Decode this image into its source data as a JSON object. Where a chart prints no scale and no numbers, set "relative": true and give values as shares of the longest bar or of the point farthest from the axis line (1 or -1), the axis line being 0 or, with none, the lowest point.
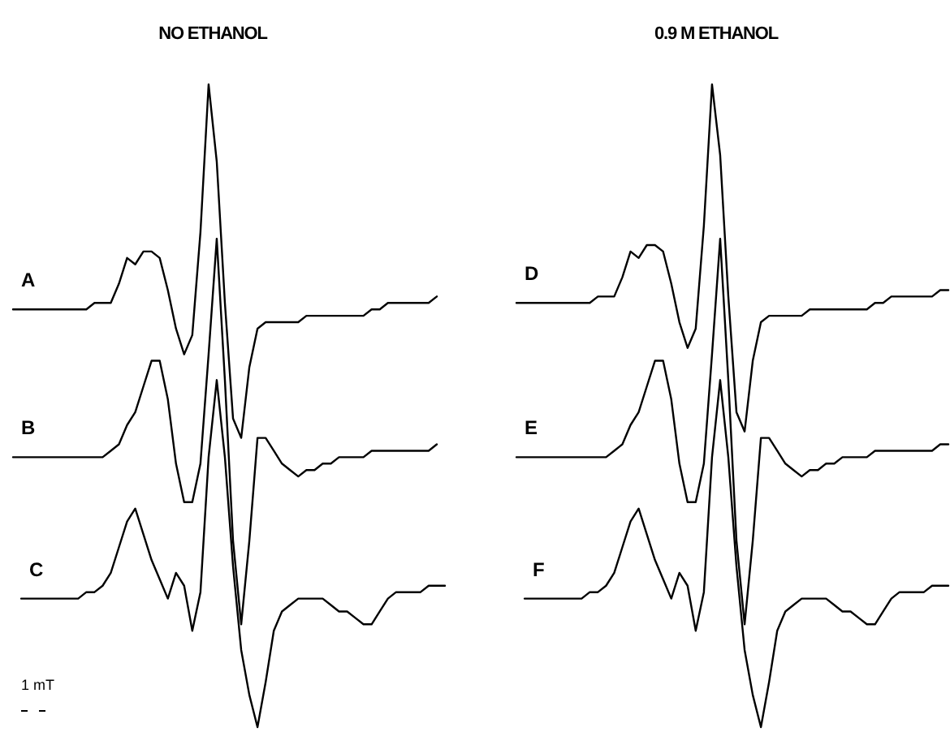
{
  "chart_data": [
    {
      "type": "line",
      "title": "NO ETHANOL",
      "relative": true,
      "categories": [
        null,
        null,
        null,
        null,
        null,
        null,
        null,
        null,
        null,
        null,
        null,
        null,
        null,
        null,
        null,
        null,
        null,
        null,
        null,
        null,
        null,
        null,
        null,
        null,
        null,
        null,
        null,
        null,
        null,
        null,
        null,
        null,
        null,
        null,
        null,
        null,
        null,
        null,
        null,
        null,
        null,
        null,
        null,
        null,
        null,
        null,
        null,
        null,
        null,
        null,
        null,
        null,
        null,
        null
      ],
      "annotations": [
        "1 mT"
      ],
      "series": [
        {
          "name": "A",
          "color": "#000000",
          "values": [
            0.65,
            0.65,
            0.65,
            0.65,
            0.65,
            0.65,
            0.65,
            0.65,
            0.65,
            0.65,
            0.66,
            0.66,
            0.66,
            0.69,
            0.73,
            0.72,
            0.74,
            0.74,
            0.73,
            0.68,
            0.62,
            0.58,
            0.61,
            0.77,
            1,
            0.88,
            0.66,
            0.48,
            0.45,
            0.56,
            0.62,
            0.63,
            0.63,
            0.63,
            0.63,
            0.63,
            0.64,
            0.64,
            0.64,
            0.64,
            0.64,
            0.64,
            0.64,
            0.64,
            0.65,
            0.65,
            0.66,
            0.66,
            0.66,
            0.66,
            0.66,
            0.66,
            0.67,
            null
          ]
        },
        {
          "name": "B",
          "color": "#000000",
          "values": [
            0.42,
            0.42,
            0.42,
            0.42,
            0.42,
            0.42,
            0.42,
            0.42,
            0.42,
            0.42,
            0.42,
            0.42,
            0.43,
            0.44,
            0.47,
            0.49,
            0.53,
            0.57,
            0.57,
            0.51,
            0.41,
            0.35,
            0.35,
            0.41,
            0.58,
            0.76,
            0.54,
            0.29,
            0.16,
            0.29,
            0.45,
            0.45,
            0.43,
            0.41,
            0.4,
            0.39,
            0.4,
            0.4,
            0.41,
            0.41,
            0.42,
            0.42,
            0.42,
            0.42,
            0.43,
            0.43,
            0.43,
            0.43,
            0.43,
            0.43,
            0.43,
            0.43,
            0.44,
            null
          ]
        },
        {
          "name": "C",
          "color": "#000000",
          "values": [
            null,
            0.2,
            0.2,
            0.2,
            0.2,
            0.2,
            0.2,
            0.2,
            0.2,
            0.21,
            0.21,
            0.22,
            0.24,
            0.28,
            0.32,
            0.34,
            0.3,
            0.26,
            0.23,
            0.2,
            0.24,
            0.22,
            0.15,
            0.21,
            0.42,
            0.54,
            0.42,
            0.25,
            0.12,
            0.05,
            0,
            0.07,
            0.15,
            0.18,
            0.19,
            0.2,
            0.2,
            0.2,
            0.2,
            0.19,
            0.18,
            0.18,
            0.17,
            0.16,
            0.16,
            0.18,
            0.2,
            0.21,
            0.21,
            0.21,
            0.21,
            0.22,
            0.22,
            0.22
          ]
        }
      ]
    },
    {
      "type": "line",
      "title": "0.9 M ETHANOL",
      "relative": true,
      "categories": [
        null,
        null,
        null,
        null,
        null,
        null,
        null,
        null,
        null,
        null,
        null,
        null,
        null,
        null,
        null,
        null,
        null,
        null,
        null,
        null,
        null,
        null,
        null,
        null,
        null,
        null,
        null,
        null,
        null,
        null,
        null,
        null,
        null,
        null,
        null,
        null,
        null,
        null,
        null,
        null,
        null,
        null,
        null,
        null,
        null,
        null,
        null,
        null,
        null,
        null,
        null,
        null,
        null,
        null
      ],
      "series": [
        {
          "name": "D",
          "color": "#000000",
          "values": [
            0.66,
            0.66,
            0.66,
            0.66,
            0.66,
            0.66,
            0.66,
            0.66,
            0.66,
            0.66,
            0.67,
            0.67,
            0.67,
            0.7,
            0.74,
            0.73,
            0.75,
            0.75,
            0.74,
            0.69,
            0.63,
            0.59,
            0.62,
            0.78,
            1,
            0.89,
            0.67,
            0.49,
            0.46,
            0.57,
            0.63,
            0.64,
            0.64,
            0.64,
            0.64,
            0.64,
            0.65,
            0.65,
            0.65,
            0.65,
            0.65,
            0.65,
            0.65,
            0.65,
            0.66,
            0.66,
            0.67,
            0.67,
            0.67,
            0.67,
            0.67,
            0.67,
            0.68,
            0.68
          ]
        },
        {
          "name": "E",
          "color": "#000000",
          "values": [
            0.42,
            0.42,
            0.42,
            0.42,
            0.42,
            0.42,
            0.42,
            0.42,
            0.42,
            0.42,
            0.42,
            0.42,
            0.43,
            0.44,
            0.47,
            0.49,
            0.53,
            0.57,
            0.57,
            0.51,
            0.41,
            0.35,
            0.35,
            0.41,
            0.58,
            0.76,
            0.54,
            0.29,
            0.16,
            0.29,
            0.45,
            0.45,
            0.43,
            0.41,
            0.4,
            0.39,
            0.4,
            0.4,
            0.41,
            0.41,
            0.42,
            0.42,
            0.42,
            0.42,
            0.43,
            0.43,
            0.43,
            0.43,
            0.43,
            0.43,
            0.43,
            0.43,
            0.44,
            0.44
          ]
        },
        {
          "name": "F",
          "color": "#000000",
          "values": [
            null,
            0.2,
            0.2,
            0.2,
            0.2,
            0.2,
            0.2,
            0.2,
            0.2,
            0.21,
            0.21,
            0.22,
            0.24,
            0.28,
            0.32,
            0.34,
            0.3,
            0.26,
            0.23,
            0.2,
            0.24,
            0.22,
            0.15,
            0.21,
            0.42,
            0.54,
            0.42,
            0.25,
            0.12,
            0.05,
            0,
            0.07,
            0.15,
            0.18,
            0.19,
            0.2,
            0.2,
            0.2,
            0.2,
            0.19,
            0.18,
            0.18,
            0.17,
            0.16,
            0.16,
            0.18,
            0.2,
            0.21,
            0.21,
            0.21,
            0.21,
            0.22,
            0.22,
            0.22
          ]
        }
      ]
    }
  ]
}
